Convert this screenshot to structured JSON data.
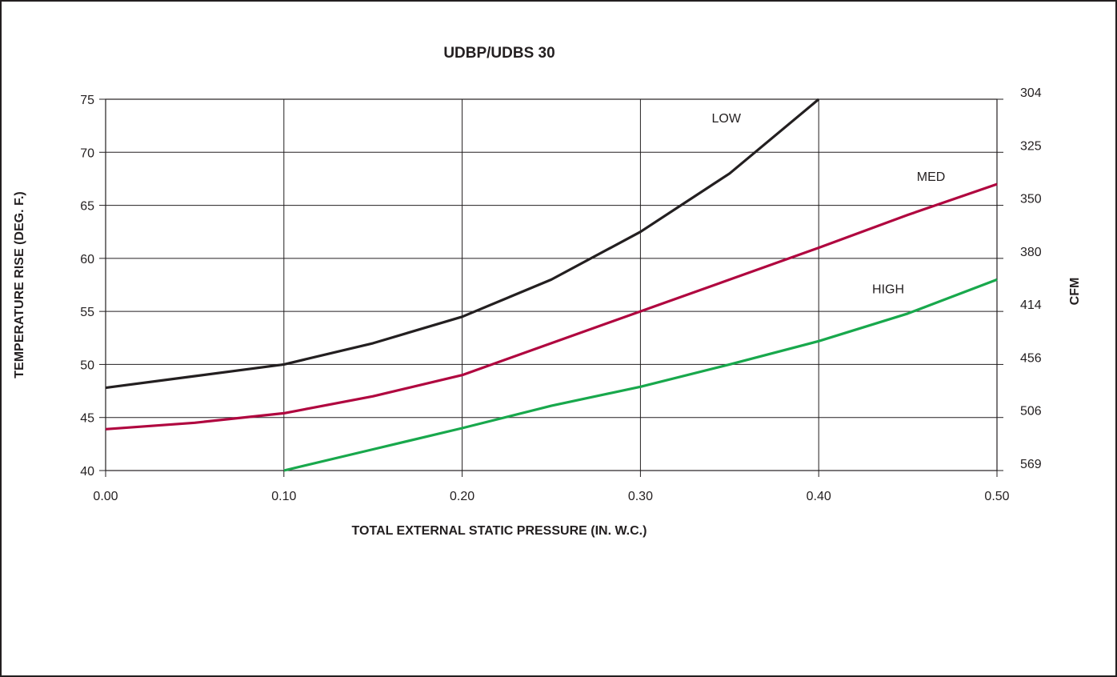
{
  "chart_data": {
    "type": "line",
    "title": "UDBP/UDBS 30",
    "xlabel": "TOTAL EXTERNAL STATIC PRESSURE (IN. W.C.)",
    "ylabel": "TEMPERATURE RISE (DEG. F.)",
    "y2label": "CFM",
    "xlim": [
      0.0,
      0.5
    ],
    "ylim": [
      40,
      75
    ],
    "x_ticks": [
      "0.00",
      "0.10",
      "0.20",
      "0.30",
      "0.40",
      "0.50"
    ],
    "x_tick_values": [
      0.0,
      0.1,
      0.2,
      0.3,
      0.4,
      0.5
    ],
    "y_ticks": [
      "40",
      "45",
      "50",
      "55",
      "60",
      "65",
      "70",
      "75"
    ],
    "y_tick_values": [
      40,
      45,
      50,
      55,
      60,
      65,
      70,
      75
    ],
    "y2_ticks": [
      "569",
      "506",
      "456",
      "414",
      "380",
      "350",
      "325",
      "304"
    ],
    "grid": true,
    "series": [
      {
        "name": "LOW",
        "color": "#231f20",
        "x": [
          0.0,
          0.05,
          0.1,
          0.15,
          0.2,
          0.25,
          0.3,
          0.35,
          0.4
        ],
        "y": [
          47.8,
          48.9,
          50.0,
          52.0,
          54.5,
          58.0,
          62.5,
          68.0,
          75.0
        ],
        "label_x": 0.34,
        "label_y": 72.8
      },
      {
        "name": "MED",
        "color": "#b0063f",
        "x": [
          0.0,
          0.05,
          0.1,
          0.15,
          0.2,
          0.25,
          0.3,
          0.35,
          0.4,
          0.45,
          0.5
        ],
        "y": [
          43.9,
          44.5,
          45.4,
          47.0,
          49.0,
          52.0,
          55.0,
          58.0,
          61.0,
          64.1,
          67.0
        ],
        "label_x": 0.455,
        "label_y": 67.3
      },
      {
        "name": "HIGH",
        "color": "#18a84c",
        "x": [
          0.1,
          0.15,
          0.2,
          0.25,
          0.3,
          0.35,
          0.4,
          0.45,
          0.5
        ],
        "y": [
          40.0,
          42.0,
          44.0,
          46.1,
          47.9,
          50.0,
          52.2,
          54.8,
          58.0
        ],
        "label_x": 0.43,
        "label_y": 56.7
      }
    ]
  }
}
